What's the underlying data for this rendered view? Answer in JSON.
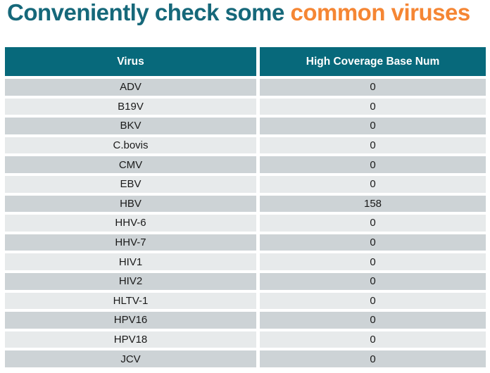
{
  "title": {
    "prefix": "Conveniently check some ",
    "highlight": "common viruses"
  },
  "colors": {
    "title_teal": "#16687A",
    "title_orange": "#F58634",
    "header_bg": "#07697B",
    "header_text": "#FFFFFF",
    "row_dark": "#CDD3D6",
    "row_light": "#E7EAEB",
    "cell_text": "#1A1A1A"
  },
  "chart_data": {
    "type": "table",
    "title": "Conveniently check some common viruses",
    "columns": [
      "Virus",
      "High Coverage Base Num"
    ],
    "rows": [
      [
        "ADV",
        0
      ],
      [
        "B19V",
        0
      ],
      [
        "BKV",
        0
      ],
      [
        "C.bovis",
        0
      ],
      [
        "CMV",
        0
      ],
      [
        "EBV",
        0
      ],
      [
        "HBV",
        158
      ],
      [
        "HHV-6",
        0
      ],
      [
        "HHV-7",
        0
      ],
      [
        "HIV1",
        0
      ],
      [
        "HIV2",
        0
      ],
      [
        "HLTV-1",
        0
      ],
      [
        "HPV16",
        0
      ],
      [
        "HPV18",
        0
      ],
      [
        "JCV",
        0
      ]
    ],
    "layout": {
      "header_style": "teal-banner",
      "row_striping": "dark-light-alternating",
      "value_of_interest": "HBV = 158"
    }
  }
}
